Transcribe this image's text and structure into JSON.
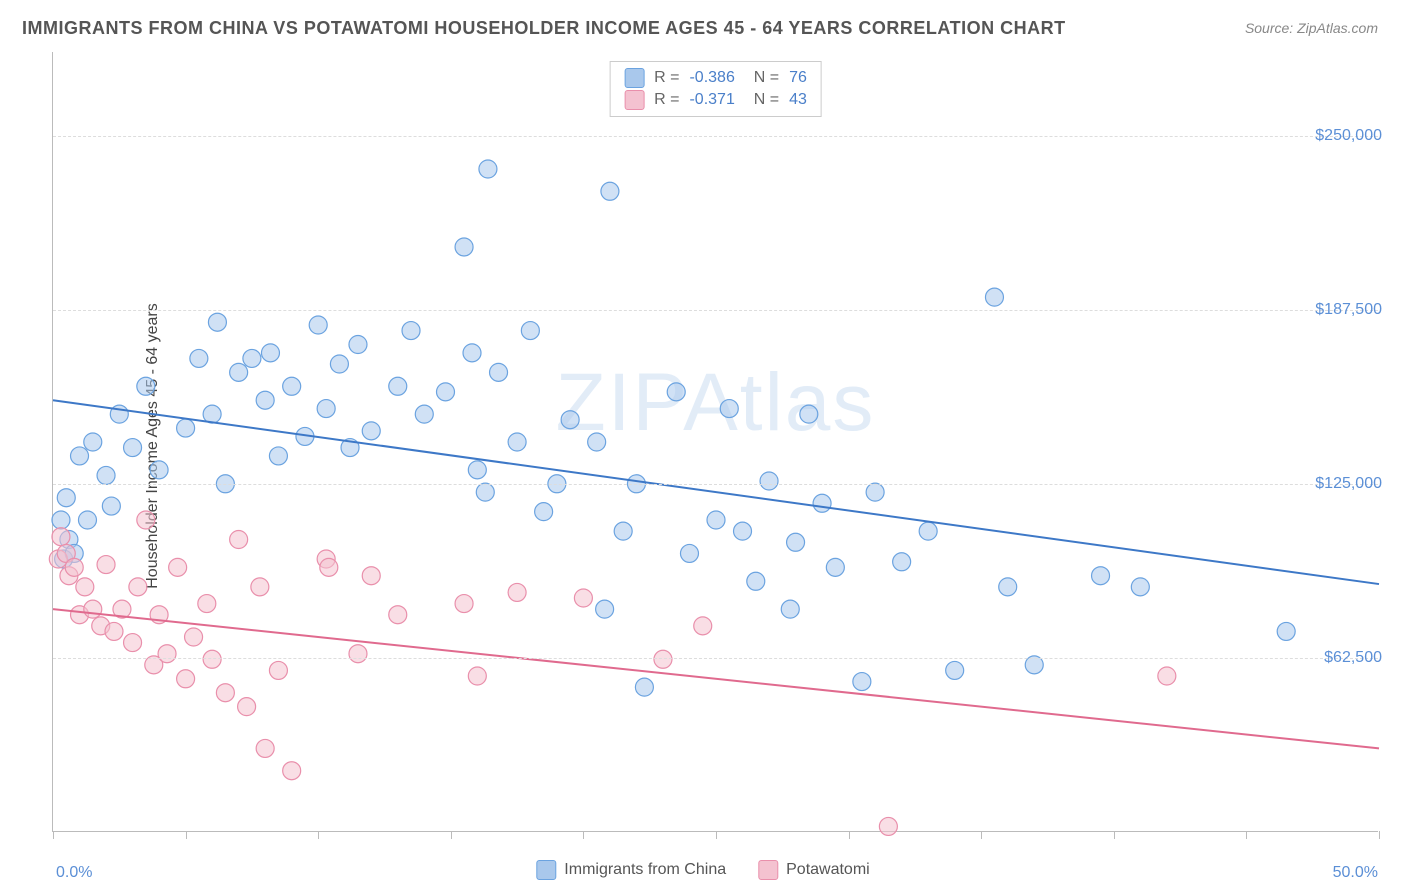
{
  "title": "IMMIGRANTS FROM CHINA VS POTAWATOMI HOUSEHOLDER INCOME AGES 45 - 64 YEARS CORRELATION CHART",
  "source": "Source: ZipAtlas.com",
  "ylabel": "Householder Income Ages 45 - 64 years",
  "watermark": "ZIPAtlas",
  "chart": {
    "type": "scatter",
    "xlim": [
      0,
      50
    ],
    "ylim": [
      0,
      280000
    ],
    "x_tick_positions": [
      0,
      5,
      10,
      15,
      20,
      25,
      30,
      35,
      40,
      45,
      50
    ],
    "x_tick_labels": {
      "0": "0.0%",
      "50": "50.0%"
    },
    "y_grid_positions": [
      62500,
      125000,
      187500,
      250000
    ],
    "y_tick_labels": [
      "$62,500",
      "$125,000",
      "$187,500",
      "$250,000"
    ],
    "background_color": "#ffffff",
    "grid_color": "#dddddd",
    "axis_color": "#bbbbbb",
    "tick_label_color": "#5b8fd6",
    "marker_radius": 9,
    "marker_opacity": 0.55,
    "line_width": 2,
    "series": [
      {
        "name": "Immigrants from China",
        "color_fill": "#a9c8ec",
        "color_stroke": "#6ba3e0",
        "line_color": "#3d78c7",
        "R": "-0.386",
        "N": "76",
        "trend": {
          "x1": 0,
          "y1": 155000,
          "x2": 50,
          "y2": 89000
        },
        "points": [
          [
            0.3,
            112000
          ],
          [
            0.4,
            98000
          ],
          [
            0.5,
            120000
          ],
          [
            0.6,
            105000
          ],
          [
            0.8,
            100000
          ],
          [
            1.0,
            135000
          ],
          [
            1.3,
            112000
          ],
          [
            1.5,
            140000
          ],
          [
            2.0,
            128000
          ],
          [
            2.2,
            117000
          ],
          [
            2.5,
            150000
          ],
          [
            3.0,
            138000
          ],
          [
            3.5,
            160000
          ],
          [
            4.0,
            130000
          ],
          [
            5.0,
            145000
          ],
          [
            5.5,
            170000
          ],
          [
            6.0,
            150000
          ],
          [
            6.2,
            183000
          ],
          [
            6.5,
            125000
          ],
          [
            7.0,
            165000
          ],
          [
            7.5,
            170000
          ],
          [
            8.0,
            155000
          ],
          [
            8.2,
            172000
          ],
          [
            8.5,
            135000
          ],
          [
            9.0,
            160000
          ],
          [
            9.5,
            142000
          ],
          [
            10.0,
            182000
          ],
          [
            10.3,
            152000
          ],
          [
            10.8,
            168000
          ],
          [
            11.2,
            138000
          ],
          [
            11.5,
            175000
          ],
          [
            12.0,
            144000
          ],
          [
            13.0,
            160000
          ],
          [
            13.5,
            180000
          ],
          [
            14.0,
            150000
          ],
          [
            14.8,
            158000
          ],
          [
            15.5,
            210000
          ],
          [
            15.8,
            172000
          ],
          [
            16.0,
            130000
          ],
          [
            16.3,
            122000
          ],
          [
            16.4,
            238000
          ],
          [
            16.8,
            165000
          ],
          [
            17.5,
            140000
          ],
          [
            18.0,
            180000
          ],
          [
            18.5,
            115000
          ],
          [
            19.0,
            125000
          ],
          [
            19.5,
            148000
          ],
          [
            20.5,
            140000
          ],
          [
            20.8,
            80000
          ],
          [
            21.0,
            230000
          ],
          [
            21.5,
            108000
          ],
          [
            22.0,
            125000
          ],
          [
            22.3,
            52000
          ],
          [
            23.5,
            158000
          ],
          [
            24.0,
            100000
          ],
          [
            25.0,
            112000
          ],
          [
            25.5,
            152000
          ],
          [
            26.0,
            108000
          ],
          [
            26.5,
            90000
          ],
          [
            27.0,
            126000
          ],
          [
            27.8,
            80000
          ],
          [
            28.0,
            104000
          ],
          [
            28.5,
            150000
          ],
          [
            29.0,
            118000
          ],
          [
            29.5,
            95000
          ],
          [
            30.5,
            54000
          ],
          [
            31.0,
            122000
          ],
          [
            32.0,
            97000
          ],
          [
            33.0,
            108000
          ],
          [
            34.0,
            58000
          ],
          [
            35.5,
            192000
          ],
          [
            36.0,
            88000
          ],
          [
            37.0,
            60000
          ],
          [
            39.5,
            92000
          ],
          [
            41.0,
            88000
          ],
          [
            46.5,
            72000
          ]
        ]
      },
      {
        "name": "Potawatomi",
        "color_fill": "#f4c2d0",
        "color_stroke": "#e98fab",
        "line_color": "#e06a8e",
        "R": "-0.371",
        "N": "43",
        "trend": {
          "x1": 0,
          "y1": 80000,
          "x2": 50,
          "y2": 30000
        },
        "points": [
          [
            0.2,
            98000
          ],
          [
            0.3,
            106000
          ],
          [
            0.5,
            100000
          ],
          [
            0.6,
            92000
          ],
          [
            0.8,
            95000
          ],
          [
            1.0,
            78000
          ],
          [
            1.2,
            88000
          ],
          [
            1.5,
            80000
          ],
          [
            1.8,
            74000
          ],
          [
            2.0,
            96000
          ],
          [
            2.3,
            72000
          ],
          [
            2.6,
            80000
          ],
          [
            3.0,
            68000
          ],
          [
            3.2,
            88000
          ],
          [
            3.5,
            112000
          ],
          [
            3.8,
            60000
          ],
          [
            4.0,
            78000
          ],
          [
            4.3,
            64000
          ],
          [
            4.7,
            95000
          ],
          [
            5.0,
            55000
          ],
          [
            5.3,
            70000
          ],
          [
            5.8,
            82000
          ],
          [
            6.0,
            62000
          ],
          [
            6.5,
            50000
          ],
          [
            7.0,
            105000
          ],
          [
            7.3,
            45000
          ],
          [
            7.8,
            88000
          ],
          [
            8.0,
            30000
          ],
          [
            8.5,
            58000
          ],
          [
            9.0,
            22000
          ],
          [
            10.3,
            98000
          ],
          [
            10.4,
            95000
          ],
          [
            11.5,
            64000
          ],
          [
            12.0,
            92000
          ],
          [
            13.0,
            78000
          ],
          [
            15.5,
            82000
          ],
          [
            16.0,
            56000
          ],
          [
            17.5,
            86000
          ],
          [
            20.0,
            84000
          ],
          [
            23.0,
            62000
          ],
          [
            24.5,
            74000
          ],
          [
            31.5,
            2000
          ],
          [
            42.0,
            56000
          ]
        ]
      }
    ]
  },
  "legend_bottom": [
    {
      "label": "Immigrants from China",
      "fill": "#a9c8ec",
      "stroke": "#6ba3e0"
    },
    {
      "label": "Potawatomi",
      "fill": "#f4c2d0",
      "stroke": "#e98fab"
    }
  ]
}
